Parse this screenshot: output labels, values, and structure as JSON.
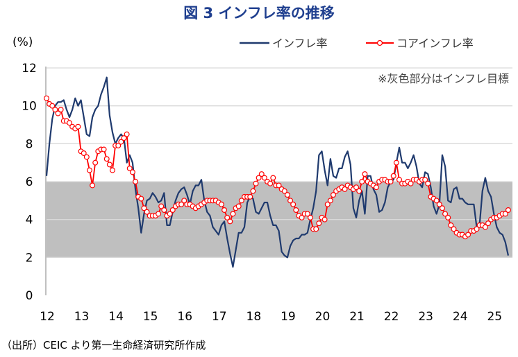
{
  "title": "図 3  インフレ率の推移",
  "source": "（出所）CEIC より第一生命経済研究所作成",
  "chart_data": {
    "type": "line",
    "title": "図 3  インフレ率の推移",
    "ylabel": "(%)",
    "xlabel": "",
    "ylim": [
      0,
      12
    ],
    "yticks": [
      "0",
      "2",
      "4",
      "6",
      "8",
      "10",
      "12"
    ],
    "xticks": [
      "12",
      "13",
      "14",
      "15",
      "16",
      "17",
      "18",
      "19",
      "20",
      "21",
      "22",
      "23",
      "24",
      "25"
    ],
    "x_start": "2012-01",
    "frequency": "monthly",
    "grid": true,
    "legend_position": "top-right",
    "annotation": "※灰色部分はインフレ目標",
    "target_band": [
      2,
      6
    ],
    "colors": {
      "headline": "#1f3a6e",
      "core": "#ff0000",
      "band": "#bfbfbf"
    },
    "series": [
      {
        "name": "インフレ率",
        "values": [
          6.3,
          8.0,
          9.3,
          10.0,
          10.2,
          10.2,
          10.3,
          9.8,
          9.4,
          9.8,
          10.4,
          10.0,
          10.3,
          9.4,
          8.5,
          8.4,
          9.4,
          9.8,
          10.0,
          10.6,
          11.0,
          11.5,
          9.5,
          8.6,
          8.0,
          8.3,
          8.5,
          8.3,
          7.0,
          7.4,
          7.0,
          5.6,
          4.6,
          3.3,
          4.3,
          5.0,
          5.1,
          5.4,
          5.2,
          4.9,
          5.0,
          5.4,
          3.7,
          3.7,
          4.4,
          5.0,
          5.4,
          5.6,
          5.7,
          5.3,
          4.8,
          5.5,
          5.8,
          5.8,
          6.1,
          5.0,
          4.4,
          4.2,
          3.6,
          3.4,
          3.2,
          3.7,
          3.9,
          3.0,
          2.2,
          1.5,
          2.4,
          3.3,
          3.3,
          3.6,
          4.9,
          5.2,
          5.1,
          4.4,
          4.3,
          4.6,
          4.9,
          4.9,
          4.2,
          3.7,
          3.7,
          3.4,
          2.3,
          2.1,
          2.0,
          2.6,
          2.9,
          3.0,
          3.0,
          3.2,
          3.2,
          3.3,
          4.0,
          4.6,
          5.5,
          7.4,
          7.6,
          6.6,
          5.8,
          7.2,
          6.3,
          6.2,
          6.7,
          6.7,
          7.3,
          7.6,
          6.9,
          4.6,
          4.1,
          5.0,
          5.5,
          4.3,
          6.3,
          6.3,
          5.6,
          5.3,
          4.4,
          4.5,
          4.9,
          5.7,
          6.0,
          6.1,
          7.0,
          7.8,
          7.0,
          7.0,
          6.7,
          7.0,
          7.4,
          6.8,
          5.9,
          5.7,
          6.5,
          6.4,
          5.7,
          4.7,
          4.3,
          4.8,
          7.4,
          6.8,
          5.0,
          4.9,
          5.6,
          5.7,
          5.1,
          5.1,
          4.9,
          4.8,
          4.8,
          4.8,
          3.6,
          3.7,
          5.5,
          6.2,
          5.5,
          5.2,
          4.3,
          3.6,
          3.3,
          3.2,
          2.8,
          2.1
        ]
      },
      {
        "name": "コアインフレ率",
        "values": [
          10.4,
          10.1,
          10.0,
          9.8,
          9.6,
          9.8,
          9.2,
          9.2,
          9.1,
          8.9,
          8.8,
          8.9,
          7.6,
          7.5,
          7.3,
          6.6,
          5.8,
          7.0,
          7.6,
          7.7,
          7.7,
          7.2,
          6.9,
          6.6,
          7.9,
          7.9,
          8.1,
          8.3,
          8.5,
          6.7,
          6.5,
          6.0,
          5.2,
          5.1,
          4.6,
          4.4,
          4.2,
          4.2,
          4.2,
          4.3,
          4.7,
          4.5,
          4.2,
          4.3,
          4.5,
          4.7,
          4.8,
          4.8,
          5.0,
          4.8,
          4.8,
          4.7,
          4.6,
          4.7,
          4.8,
          4.9,
          5.0,
          5.0,
          5.0,
          5.0,
          4.9,
          4.8,
          4.5,
          4.1,
          3.9,
          4.3,
          4.6,
          4.7,
          5.0,
          5.2,
          5.2,
          5.2,
          5.5,
          5.9,
          6.2,
          6.4,
          6.2,
          6.0,
          5.9,
          6.2,
          5.8,
          5.8,
          5.6,
          5.5,
          5.3,
          5.0,
          4.8,
          4.5,
          4.2,
          4.1,
          4.3,
          4.3,
          4.1,
          3.5,
          3.5,
          3.8,
          4.1,
          4.0,
          4.8,
          5.0,
          5.3,
          5.5,
          5.6,
          5.7,
          5.6,
          5.8,
          5.7,
          5.6,
          5.7,
          5.5,
          6.0,
          6.4,
          6.0,
          5.9,
          5.8,
          5.7,
          6.0,
          6.1,
          6.1,
          6.0,
          6.0,
          6.3,
          7.0,
          6.1,
          5.9,
          5.9,
          6.0,
          5.9,
          6.1,
          6.1,
          6.0,
          6.1,
          6.1,
          5.9,
          5.2,
          5.1,
          5.0,
          4.8,
          4.6,
          4.3,
          4.1,
          3.7,
          3.5,
          3.3,
          3.2,
          3.2,
          3.1,
          3.2,
          3.4,
          3.4,
          3.5,
          3.7,
          3.7,
          3.6,
          3.8,
          4.0,
          4.1,
          4.1,
          4.2,
          4.3,
          4.3,
          4.5
        ]
      }
    ]
  }
}
